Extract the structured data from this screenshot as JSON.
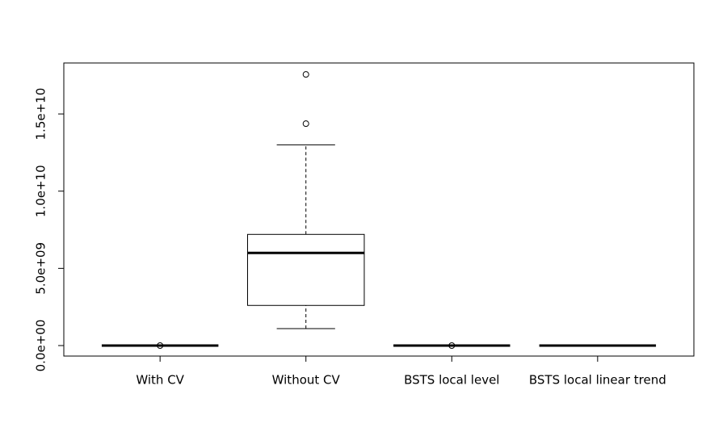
{
  "chart_data": {
    "type": "box",
    "categories": [
      "With CV",
      "Without CV",
      "BSTS local level",
      "BSTS local linear trend"
    ],
    "boxes": [
      {
        "min": 0,
        "q1": 0,
        "median": 0,
        "q3": 0,
        "max": 0,
        "outliers": [
          0
        ]
      },
      {
        "min": 1100000000,
        "q1": 2600000000,
        "median": 6000000000,
        "q3": 7200000000,
        "max": 13000000000,
        "outliers": [
          14370000000,
          17560000000
        ]
      },
      {
        "min": 0,
        "q1": 0,
        "median": 0,
        "q3": 0,
        "max": 0,
        "outliers": [
          0
        ]
      },
      {
        "min": 0,
        "q1": 0,
        "median": 0,
        "q3": 0,
        "max": 0,
        "outliers": []
      }
    ],
    "ylim": [
      -680000000,
      18300000000
    ],
    "yticks": [
      {
        "value": 0,
        "label": "0.0e+00"
      },
      {
        "value": 5000000000,
        "label": "5.0e+09"
      },
      {
        "value": 10000000000,
        "label": "1.0e+10"
      },
      {
        "value": 15000000000,
        "label": "1.5e+10"
      }
    ],
    "color": "#000000"
  }
}
